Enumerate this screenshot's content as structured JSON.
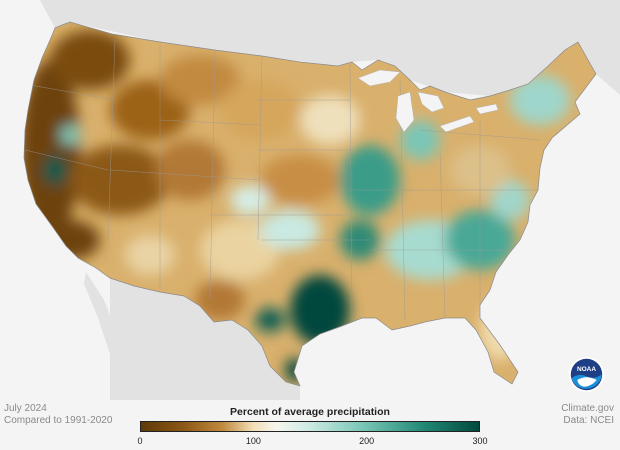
{
  "footer": {
    "date": "July 2024",
    "baseline": "Compared to 1991-2020",
    "source": "Climate.gov",
    "data_credit": "Data: NCEI"
  },
  "legend": {
    "title": "Percent of average precipitation",
    "ticks": [
      "0",
      "100",
      "200",
      "300"
    ],
    "tick_values": [
      0,
      100,
      200,
      300
    ],
    "range": [
      0,
      300
    ],
    "colors": [
      "#5e3a08",
      "#a8691a",
      "#d7aa62",
      "#f1dfb6",
      "#f6f6f0",
      "#c9e9e2",
      "#75c4b4",
      "#238977",
      "#00473c"
    ]
  },
  "logo": {
    "name": "NOAA"
  },
  "map": {
    "land_color": "#e2e2e2",
    "water_color": "#f4f4f4",
    "border_color": "#9a9a9a"
  }
}
